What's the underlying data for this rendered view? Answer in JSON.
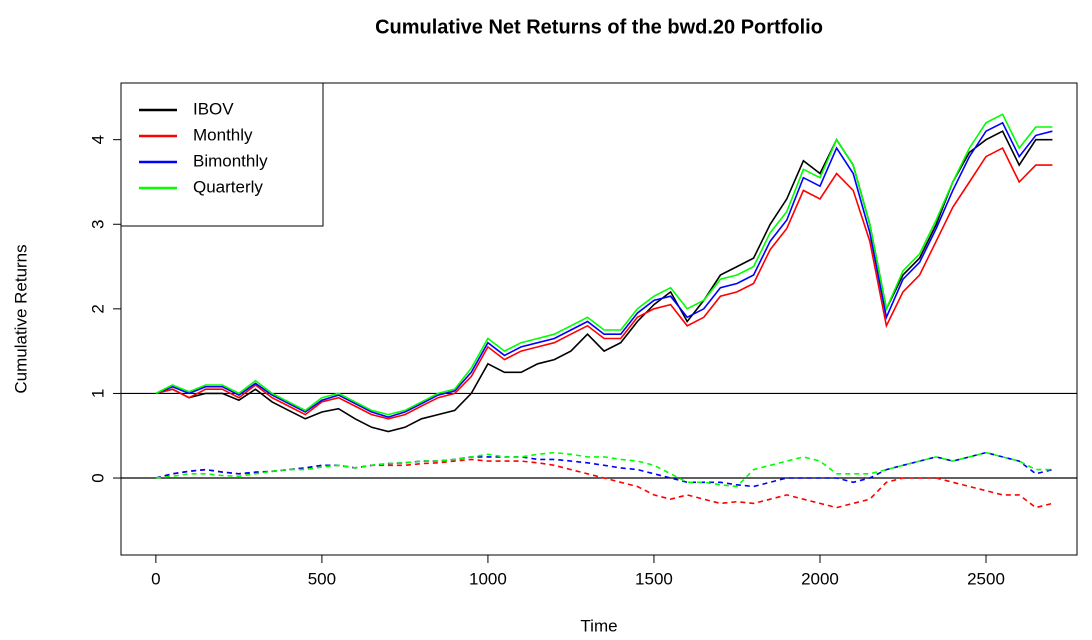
{
  "chart_data": {
    "type": "line",
    "title": "Cumulative Net Returns of the bwd.20 Portfolio",
    "x_label": "Time",
    "y_label": "Cumulative Returns",
    "x": [
      0,
      50,
      100,
      150,
      200,
      250,
      300,
      350,
      400,
      450,
      500,
      550,
      600,
      650,
      700,
      750,
      800,
      850,
      900,
      950,
      1000,
      1050,
      1100,
      1150,
      1200,
      1250,
      1300,
      1350,
      1400,
      1450,
      1500,
      1550,
      1600,
      1650,
      1700,
      1750,
      1800,
      1850,
      1900,
      1950,
      2000,
      2050,
      2100,
      2150,
      2200,
      2250,
      2300,
      2350,
      2400,
      2450,
      2500,
      2550,
      2600,
      2650,
      2700
    ],
    "series": [
      {
        "name": "IBOV",
        "color": "#000000",
        "linestyle": "solid",
        "values": [
          1.0,
          1.05,
          0.95,
          1.0,
          1.0,
          0.92,
          1.05,
          0.9,
          0.8,
          0.7,
          0.78,
          0.82,
          0.7,
          0.6,
          0.55,
          0.6,
          0.7,
          0.75,
          0.8,
          1.0,
          1.35,
          1.25,
          1.25,
          1.35,
          1.4,
          1.5,
          1.7,
          1.5,
          1.6,
          1.85,
          2.05,
          2.2,
          1.85,
          2.1,
          2.4,
          2.5,
          2.6,
          3.0,
          3.3,
          3.75,
          3.6,
          4.0,
          3.7,
          3.0,
          2.0,
          2.4,
          2.6,
          3.0,
          3.5,
          3.85,
          4.0,
          4.1,
          3.7,
          4.0,
          4.0
        ]
      },
      {
        "name": "Monthly",
        "color": "#ff0000",
        "linestyle": "solid",
        "values": [
          1.0,
          1.05,
          0.95,
          1.05,
          1.05,
          0.95,
          1.1,
          0.95,
          0.85,
          0.75,
          0.9,
          0.95,
          0.85,
          0.75,
          0.7,
          0.75,
          0.85,
          0.95,
          1.0,
          1.2,
          1.55,
          1.4,
          1.5,
          1.55,
          1.6,
          1.7,
          1.8,
          1.65,
          1.65,
          1.9,
          2.0,
          2.05,
          1.8,
          1.9,
          2.15,
          2.2,
          2.3,
          2.7,
          2.95,
          3.4,
          3.3,
          3.6,
          3.4,
          2.8,
          1.8,
          2.2,
          2.4,
          2.8,
          3.2,
          3.5,
          3.8,
          3.9,
          3.5,
          3.7,
          3.7
        ]
      },
      {
        "name": "Bimonthly",
        "color": "#0000ff",
        "linestyle": "solid",
        "values": [
          1.0,
          1.08,
          1.0,
          1.08,
          1.08,
          0.98,
          1.12,
          0.98,
          0.88,
          0.78,
          0.92,
          0.98,
          0.88,
          0.78,
          0.72,
          0.78,
          0.88,
          0.98,
          1.03,
          1.25,
          1.6,
          1.45,
          1.55,
          1.6,
          1.65,
          1.75,
          1.85,
          1.7,
          1.7,
          1.95,
          2.1,
          2.15,
          1.9,
          2.0,
          2.25,
          2.3,
          2.4,
          2.8,
          3.05,
          3.55,
          3.45,
          3.9,
          3.6,
          2.9,
          1.9,
          2.35,
          2.55,
          2.95,
          3.4,
          3.8,
          4.1,
          4.2,
          3.8,
          4.05,
          4.1
        ]
      },
      {
        "name": "Quarterly",
        "color": "#00ff00",
        "linestyle": "solid",
        "values": [
          1.0,
          1.1,
          1.02,
          1.1,
          1.1,
          1.0,
          1.15,
          1.0,
          0.9,
          0.8,
          0.95,
          1.0,
          0.9,
          0.8,
          0.75,
          0.8,
          0.9,
          1.0,
          1.05,
          1.3,
          1.65,
          1.5,
          1.6,
          1.65,
          1.7,
          1.8,
          1.9,
          1.75,
          1.75,
          2.0,
          2.15,
          2.25,
          2.0,
          2.1,
          2.35,
          2.4,
          2.5,
          2.9,
          3.15,
          3.65,
          3.55,
          4.0,
          3.7,
          3.0,
          2.0,
          2.45,
          2.65,
          3.05,
          3.5,
          3.9,
          4.2,
          4.3,
          3.9,
          4.15,
          4.15
        ]
      },
      {
        "color": "#ff0000",
        "linestyle": "dashed",
        "values": [
          0,
          0.05,
          0.08,
          0.1,
          0.07,
          0.05,
          0.06,
          0.08,
          0.1,
          0.12,
          0.15,
          0.15,
          0.12,
          0.15,
          0.15,
          0.15,
          0.17,
          0.18,
          0.2,
          0.22,
          0.2,
          0.2,
          0.2,
          0.18,
          0.15,
          0.1,
          0.05,
          0,
          -0.05,
          -0.1,
          -0.2,
          -0.25,
          -0.2,
          -0.25,
          -0.3,
          -0.28,
          -0.3,
          -0.25,
          -0.2,
          -0.25,
          -0.3,
          -0.35,
          -0.3,
          -0.25,
          -0.05,
          0,
          0,
          0,
          -0.05,
          -0.1,
          -0.15,
          -0.2,
          -0.2,
          -0.35,
          -0.3
        ]
      },
      {
        "color": "#0000ff",
        "linestyle": "dashed",
        "values": [
          0,
          0.05,
          0.08,
          0.1,
          0.07,
          0.05,
          0.07,
          0.08,
          0.1,
          0.12,
          0.15,
          0.15,
          0.12,
          0.15,
          0.17,
          0.18,
          0.2,
          0.2,
          0.22,
          0.25,
          0.25,
          0.25,
          0.25,
          0.22,
          0.22,
          0.2,
          0.18,
          0.15,
          0.12,
          0.1,
          0.05,
          0,
          -0.05,
          -0.05,
          -0.05,
          -0.08,
          -0.1,
          -0.05,
          0,
          0,
          0,
          0,
          -0.05,
          0,
          0.1,
          0.15,
          0.2,
          0.25,
          0.2,
          0.25,
          0.3,
          0.25,
          0.2,
          0.05,
          0.1
        ]
      },
      {
        "color": "#00ff00",
        "linestyle": "dashed",
        "values": [
          0,
          0.02,
          0.05,
          0.05,
          0.03,
          0.02,
          0.05,
          0.08,
          0.1,
          0.1,
          0.13,
          0.15,
          0.12,
          0.15,
          0.17,
          0.18,
          0.2,
          0.2,
          0.22,
          0.25,
          0.28,
          0.25,
          0.25,
          0.28,
          0.3,
          0.28,
          0.25,
          0.25,
          0.22,
          0.2,
          0.15,
          0.05,
          -0.05,
          -0.05,
          -0.08,
          -0.1,
          0.1,
          0.15,
          0.2,
          0.25,
          0.2,
          0.05,
          0.05,
          0.05,
          0.1,
          0.15,
          0.2,
          0.25,
          0.2,
          0.25,
          0.3,
          0.25,
          0.2,
          0.1,
          0.1
        ]
      }
    ],
    "hlines": [
      1,
      0
    ],
    "xlim": [
      -105,
      2774
    ],
    "ylim": [
      -0.91,
      4.67
    ],
    "xticks": [
      0,
      500,
      1000,
      1500,
      2000,
      2500
    ],
    "yticks": [
      0,
      1,
      2,
      3,
      4
    ],
    "legend": "topleft"
  }
}
